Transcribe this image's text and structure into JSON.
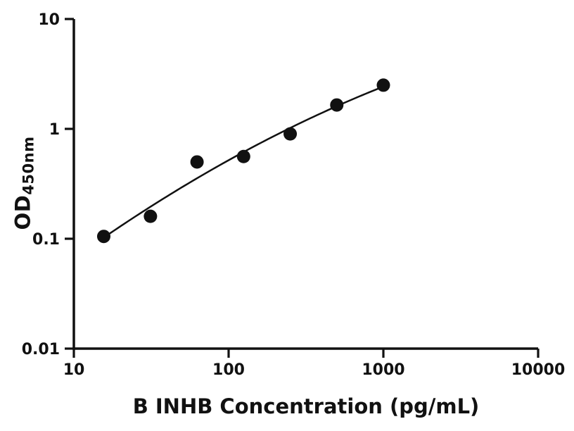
{
  "chart_data": {
    "type": "scatter",
    "title": "",
    "xlabel": "B INHB Concentration (pg/mL)",
    "ylabel": "OD450nm",
    "ylabel_main": "OD",
    "ylabel_sub": "450nm",
    "x_scale": "log",
    "y_scale": "log",
    "xlim": [
      10,
      10000
    ],
    "ylim": [
      0.01,
      10
    ],
    "x_ticks": [
      10,
      100,
      1000,
      10000
    ],
    "x_tick_labels": [
      "10",
      "100",
      "1000",
      "10000"
    ],
    "y_ticks": [
      0.01,
      0.1,
      1,
      10
    ],
    "y_tick_labels": [
      "0.01",
      "0.1",
      "1",
      "10"
    ],
    "grid": false,
    "legend": "none",
    "series": [
      {
        "name": "standard-curve-points",
        "x": [
          15.6,
          31.25,
          62.5,
          125,
          250,
          500,
          1000
        ],
        "y": [
          0.105,
          0.16,
          0.5,
          0.56,
          0.9,
          1.65,
          2.5
        ],
        "marker": "circle",
        "marker_radius": 9.5,
        "color": "#111111"
      }
    ],
    "fit_curve": {
      "type": "quadratic-loglog",
      "color": "#111111",
      "stroke_width": 2.5
    }
  },
  "colors": {
    "background": "#ffffff",
    "axis": "#111111",
    "text": "#111111"
  }
}
